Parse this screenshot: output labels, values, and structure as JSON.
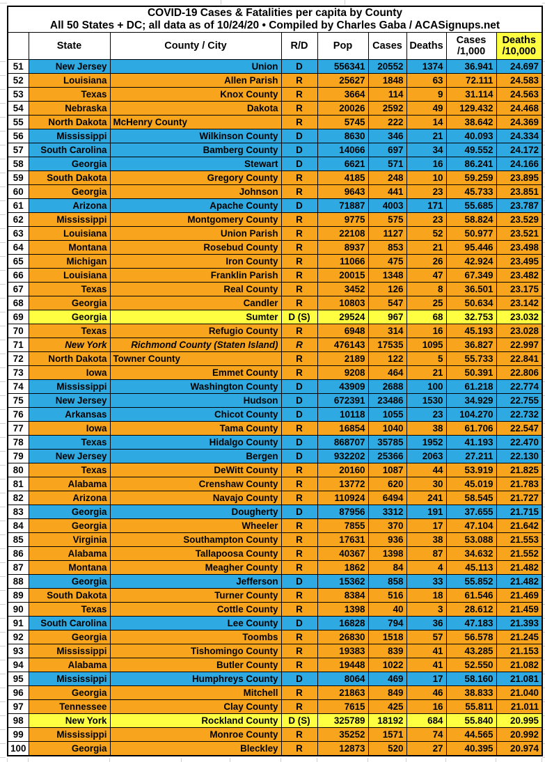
{
  "title": {
    "line1": "COVID-19 Cases & Fatalities per capita by County",
    "line2": "All 50 States + DC; all data as of 10/24/20  • Compiled by Charles Gaba / ACASignups.net"
  },
  "columns": [
    {
      "l1": ""
    },
    {
      "l1": "State"
    },
    {
      "l1": "County / City"
    },
    {
      "l1": "R/D"
    },
    {
      "l1": "Pop"
    },
    {
      "l1": "Cases"
    },
    {
      "l1": "Deaths"
    },
    {
      "l1": "Cases",
      "l2": "/1,000"
    },
    {
      "l1": "Deaths",
      "l2": "/10,000",
      "highlight": true
    }
  ],
  "colors": {
    "dem_blue": "#2FA9E1",
    "rep_orange": "#F8A51D",
    "swing_yellow": "#FFFF42",
    "border_black": "#000000",
    "sheet_gridline_gray": "#CFCFCF"
  },
  "row_fields": [
    "rank",
    "state",
    "county",
    "rd",
    "pop",
    "cases",
    "deaths",
    "cases_per_1000",
    "deaths_per_10000",
    "color",
    "flags"
  ],
  "rows": [
    [
      51,
      "New Jersey",
      "Union",
      "D",
      "556341",
      "20552",
      "1374",
      "36.941",
      "24.697",
      "dem",
      ""
    ],
    [
      52,
      "Louisiana",
      "Allen Parish",
      "R",
      "25627",
      "1848",
      "63",
      "72.111",
      "24.583",
      "rep",
      ""
    ],
    [
      53,
      "Texas",
      "Knox County",
      "R",
      "3664",
      "114",
      "9",
      "31.114",
      "24.563",
      "rep",
      ""
    ],
    [
      54,
      "Nebraska",
      "Dakota",
      "R",
      "20026",
      "2592",
      "49",
      "129.432",
      "24.468",
      "rep",
      ""
    ],
    [
      55,
      "North Dakota",
      "McHenry County",
      "R",
      "5745",
      "222",
      "14",
      "38.642",
      "24.369",
      "rep",
      "left"
    ],
    [
      56,
      "Mississippi",
      "Wilkinson County",
      "D",
      "8630",
      "346",
      "21",
      "40.093",
      "24.334",
      "dem",
      ""
    ],
    [
      57,
      "South Carolina",
      "Bamberg County",
      "D",
      "14066",
      "697",
      "34",
      "49.552",
      "24.172",
      "dem",
      ""
    ],
    [
      58,
      "Georgia",
      "Stewart",
      "D",
      "6621",
      "571",
      "16",
      "86.241",
      "24.166",
      "dem",
      ""
    ],
    [
      59,
      "South Dakota",
      "Gregory County",
      "R",
      "4185",
      "248",
      "10",
      "59.259",
      "23.895",
      "rep",
      ""
    ],
    [
      60,
      "Georgia",
      "Johnson",
      "R",
      "9643",
      "441",
      "23",
      "45.733",
      "23.851",
      "rep",
      ""
    ],
    [
      61,
      "Arizona",
      "Apache County",
      "D",
      "71887",
      "4003",
      "171",
      "55.685",
      "23.787",
      "dem",
      ""
    ],
    [
      62,
      "Mississippi",
      "Montgomery County",
      "R",
      "9775",
      "575",
      "23",
      "58.824",
      "23.529",
      "rep",
      ""
    ],
    [
      63,
      "Louisiana",
      "Union Parish",
      "R",
      "22108",
      "1127",
      "52",
      "50.977",
      "23.521",
      "rep",
      ""
    ],
    [
      64,
      "Montana",
      "Rosebud County",
      "R",
      "8937",
      "853",
      "21",
      "95.446",
      "23.498",
      "rep",
      ""
    ],
    [
      65,
      "Michigan",
      "Iron County",
      "R",
      "11066",
      "475",
      "26",
      "42.924",
      "23.495",
      "rep",
      ""
    ],
    [
      66,
      "Louisiana",
      "Franklin Parish",
      "R",
      "20015",
      "1348",
      "47",
      "67.349",
      "23.482",
      "rep",
      ""
    ],
    [
      67,
      "Texas",
      "Real County",
      "R",
      "3452",
      "126",
      "8",
      "36.501",
      "23.175",
      "rep",
      ""
    ],
    [
      68,
      "Georgia",
      "Candler",
      "R",
      "10803",
      "547",
      "25",
      "50.634",
      "23.142",
      "rep",
      ""
    ],
    [
      69,
      "Georgia",
      "Sumter",
      "D (S)",
      "29524",
      "967",
      "68",
      "32.753",
      "23.032",
      "swing",
      ""
    ],
    [
      70,
      "Texas",
      "Refugio County",
      "R",
      "6948",
      "314",
      "16",
      "45.193",
      "23.028",
      "rep",
      ""
    ],
    [
      71,
      "New York",
      "Richmond County (Staten Island)",
      "R",
      "476143",
      "17535",
      "1095",
      "36.827",
      "22.997",
      "rep",
      "italic"
    ],
    [
      72,
      "North Dakota",
      "Towner County",
      "R",
      "2189",
      "122",
      "5",
      "55.733",
      "22.841",
      "rep",
      "left"
    ],
    [
      73,
      "Iowa",
      "Emmet County",
      "R",
      "9208",
      "464",
      "21",
      "50.391",
      "22.806",
      "rep",
      ""
    ],
    [
      74,
      "Mississippi",
      "Washington County",
      "D",
      "43909",
      "2688",
      "100",
      "61.218",
      "22.774",
      "dem",
      ""
    ],
    [
      75,
      "New Jersey",
      "Hudson",
      "D",
      "672391",
      "23486",
      "1530",
      "34.929",
      "22.755",
      "dem",
      ""
    ],
    [
      76,
      "Arkansas",
      "Chicot County",
      "D",
      "10118",
      "1055",
      "23",
      "104.270",
      "22.732",
      "dem",
      ""
    ],
    [
      77,
      "Iowa",
      "Tama County",
      "R",
      "16854",
      "1040",
      "38",
      "61.706",
      "22.547",
      "rep",
      ""
    ],
    [
      78,
      "Texas",
      "Hidalgo County",
      "D",
      "868707",
      "35785",
      "1952",
      "41.193",
      "22.470",
      "dem",
      ""
    ],
    [
      79,
      "New Jersey",
      "Bergen",
      "D",
      "932202",
      "25366",
      "2063",
      "27.211",
      "22.130",
      "dem",
      ""
    ],
    [
      80,
      "Texas",
      "DeWitt County",
      "R",
      "20160",
      "1087",
      "44",
      "53.919",
      "21.825",
      "rep",
      ""
    ],
    [
      81,
      "Alabama",
      "Crenshaw County",
      "R",
      "13772",
      "620",
      "30",
      "45.019",
      "21.783",
      "rep",
      ""
    ],
    [
      82,
      "Arizona",
      "Navajo County",
      "R",
      "110924",
      "6494",
      "241",
      "58.545",
      "21.727",
      "rep",
      ""
    ],
    [
      83,
      "Georgia",
      "Dougherty",
      "D",
      "87956",
      "3312",
      "191",
      "37.655",
      "21.715",
      "dem",
      ""
    ],
    [
      84,
      "Georgia",
      "Wheeler",
      "R",
      "7855",
      "370",
      "17",
      "47.104",
      "21.642",
      "rep",
      ""
    ],
    [
      85,
      "Virginia",
      "Southampton County",
      "R",
      "17631",
      "936",
      "38",
      "53.088",
      "21.553",
      "rep",
      ""
    ],
    [
      86,
      "Alabama",
      "Tallapoosa County",
      "R",
      "40367",
      "1398",
      "87",
      "34.632",
      "21.552",
      "rep",
      ""
    ],
    [
      87,
      "Montana",
      "Meagher County",
      "R",
      "1862",
      "84",
      "4",
      "45.113",
      "21.482",
      "rep",
      ""
    ],
    [
      88,
      "Georgia",
      "Jefferson",
      "D",
      "15362",
      "858",
      "33",
      "55.852",
      "21.482",
      "dem",
      ""
    ],
    [
      89,
      "South Dakota",
      "Turner County",
      "R",
      "8384",
      "516",
      "18",
      "61.546",
      "21.469",
      "rep",
      ""
    ],
    [
      90,
      "Texas",
      "Cottle County",
      "R",
      "1398",
      "40",
      "3",
      "28.612",
      "21.459",
      "rep",
      ""
    ],
    [
      91,
      "South Carolina",
      "Lee County",
      "D",
      "16828",
      "794",
      "36",
      "47.183",
      "21.393",
      "dem",
      ""
    ],
    [
      92,
      "Georgia",
      "Toombs",
      "R",
      "26830",
      "1518",
      "57",
      "56.578",
      "21.245",
      "rep",
      ""
    ],
    [
      93,
      "Mississippi",
      "Tishomingo County",
      "R",
      "19383",
      "839",
      "41",
      "43.285",
      "21.153",
      "rep",
      ""
    ],
    [
      94,
      "Alabama",
      "Butler County",
      "R",
      "19448",
      "1022",
      "41",
      "52.550",
      "21.082",
      "rep",
      ""
    ],
    [
      95,
      "Mississippi",
      "Humphreys County",
      "D",
      "8064",
      "469",
      "17",
      "58.160",
      "21.081",
      "dem",
      ""
    ],
    [
      96,
      "Georgia",
      "Mitchell",
      "R",
      "21863",
      "849",
      "46",
      "38.833",
      "21.040",
      "rep",
      ""
    ],
    [
      97,
      "Tennessee",
      "Clay County",
      "R",
      "7615",
      "425",
      "16",
      "55.811",
      "21.011",
      "rep",
      ""
    ],
    [
      98,
      "New York",
      "Rockland County",
      "D (S)",
      "325789",
      "18192",
      "684",
      "55.840",
      "20.995",
      "swing",
      ""
    ],
    [
      99,
      "Mississippi",
      "Monroe County",
      "R",
      "35252",
      "1571",
      "74",
      "44.565",
      "20.992",
      "rep",
      ""
    ],
    [
      100,
      "Georgia",
      "Bleckley",
      "R",
      "12873",
      "520",
      "27",
      "40.395",
      "20.974",
      "rep",
      ""
    ]
  ]
}
